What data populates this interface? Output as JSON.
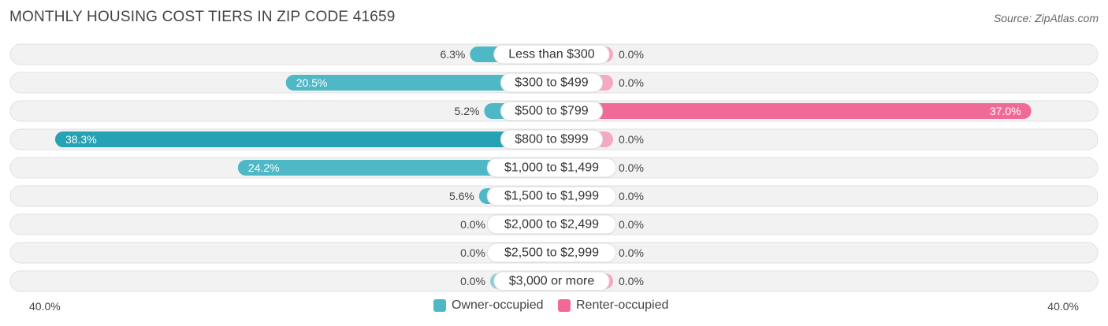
{
  "title": "MONTHLY HOUSING COST TIERS IN ZIP CODE 41659",
  "source": "Source: ZipAtlas.com",
  "colors": {
    "owner": "#4fb8c6",
    "owner_light": "#8ccfd8",
    "owner_strong": "#25a2b4",
    "renter": "#f5a8c2",
    "renter_strong": "#f06a95",
    "track": "#f2f2f2",
    "track_border": "#e0e0e0"
  },
  "legend": {
    "owner": "Owner-occupied",
    "renter": "Renter-occupied"
  },
  "axis": {
    "left": "40.0%",
    "right": "40.0%"
  },
  "chart_data": {
    "type": "bar",
    "orientation": "horizontal-diverging",
    "title": "MONTHLY HOUSING COST TIERS IN ZIP CODE 41659",
    "categories": [
      "Less than $300",
      "$300 to $499",
      "$500 to $799",
      "$800 to $999",
      "$1,000 to $1,499",
      "$1,500 to $1,999",
      "$2,000 to $2,499",
      "$2,500 to $2,999",
      "$3,000 or more"
    ],
    "series": [
      {
        "name": "Owner-occupied",
        "values": [
          6.3,
          20.5,
          5.2,
          38.3,
          24.2,
          5.6,
          0.0,
          0.0,
          0.0
        ],
        "labels": [
          "6.3%",
          "20.5%",
          "5.2%",
          "38.3%",
          "24.2%",
          "5.6%",
          "0.0%",
          "0.0%",
          "0.0%"
        ]
      },
      {
        "name": "Renter-occupied",
        "values": [
          0.0,
          0.0,
          37.0,
          0.0,
          0.0,
          0.0,
          0.0,
          0.0,
          0.0
        ],
        "labels": [
          "0.0%",
          "0.0%",
          "37.0%",
          "0.0%",
          "0.0%",
          "0.0%",
          "0.0%",
          "0.0%",
          "0.0%"
        ]
      }
    ],
    "xlim": [
      -40,
      40
    ],
    "legend_position": "bottom-center"
  }
}
